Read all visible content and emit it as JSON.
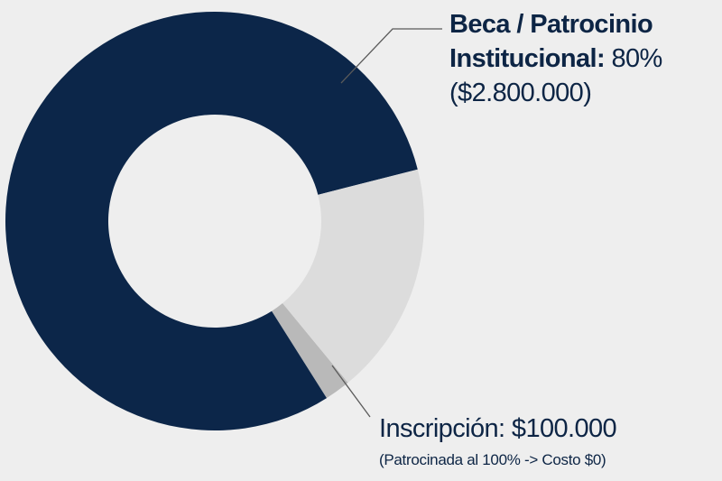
{
  "chart_data": {
    "type": "pie",
    "variant": "donut",
    "slices": [
      {
        "label": "Beca / Patrocinio Institucional",
        "value": 80,
        "amount": "$2.800.000",
        "color": "#0c2649"
      },
      {
        "label": "",
        "value": 18,
        "color": "#dcdcdc"
      },
      {
        "label": "Inscripción",
        "value": 2,
        "amount": "$100.000",
        "color": "#b9b9b9"
      }
    ]
  },
  "annotations": {
    "beca": {
      "line1": "Beca / Patrocinio",
      "line2_strong": "Institucional:",
      "line2_value": " 80%",
      "line3": "($2.800.000)"
    },
    "inscripcion": {
      "main": "Inscripción: $100.000",
      "note": "(Patrocinada al 100% -> Costo $0)"
    }
  }
}
